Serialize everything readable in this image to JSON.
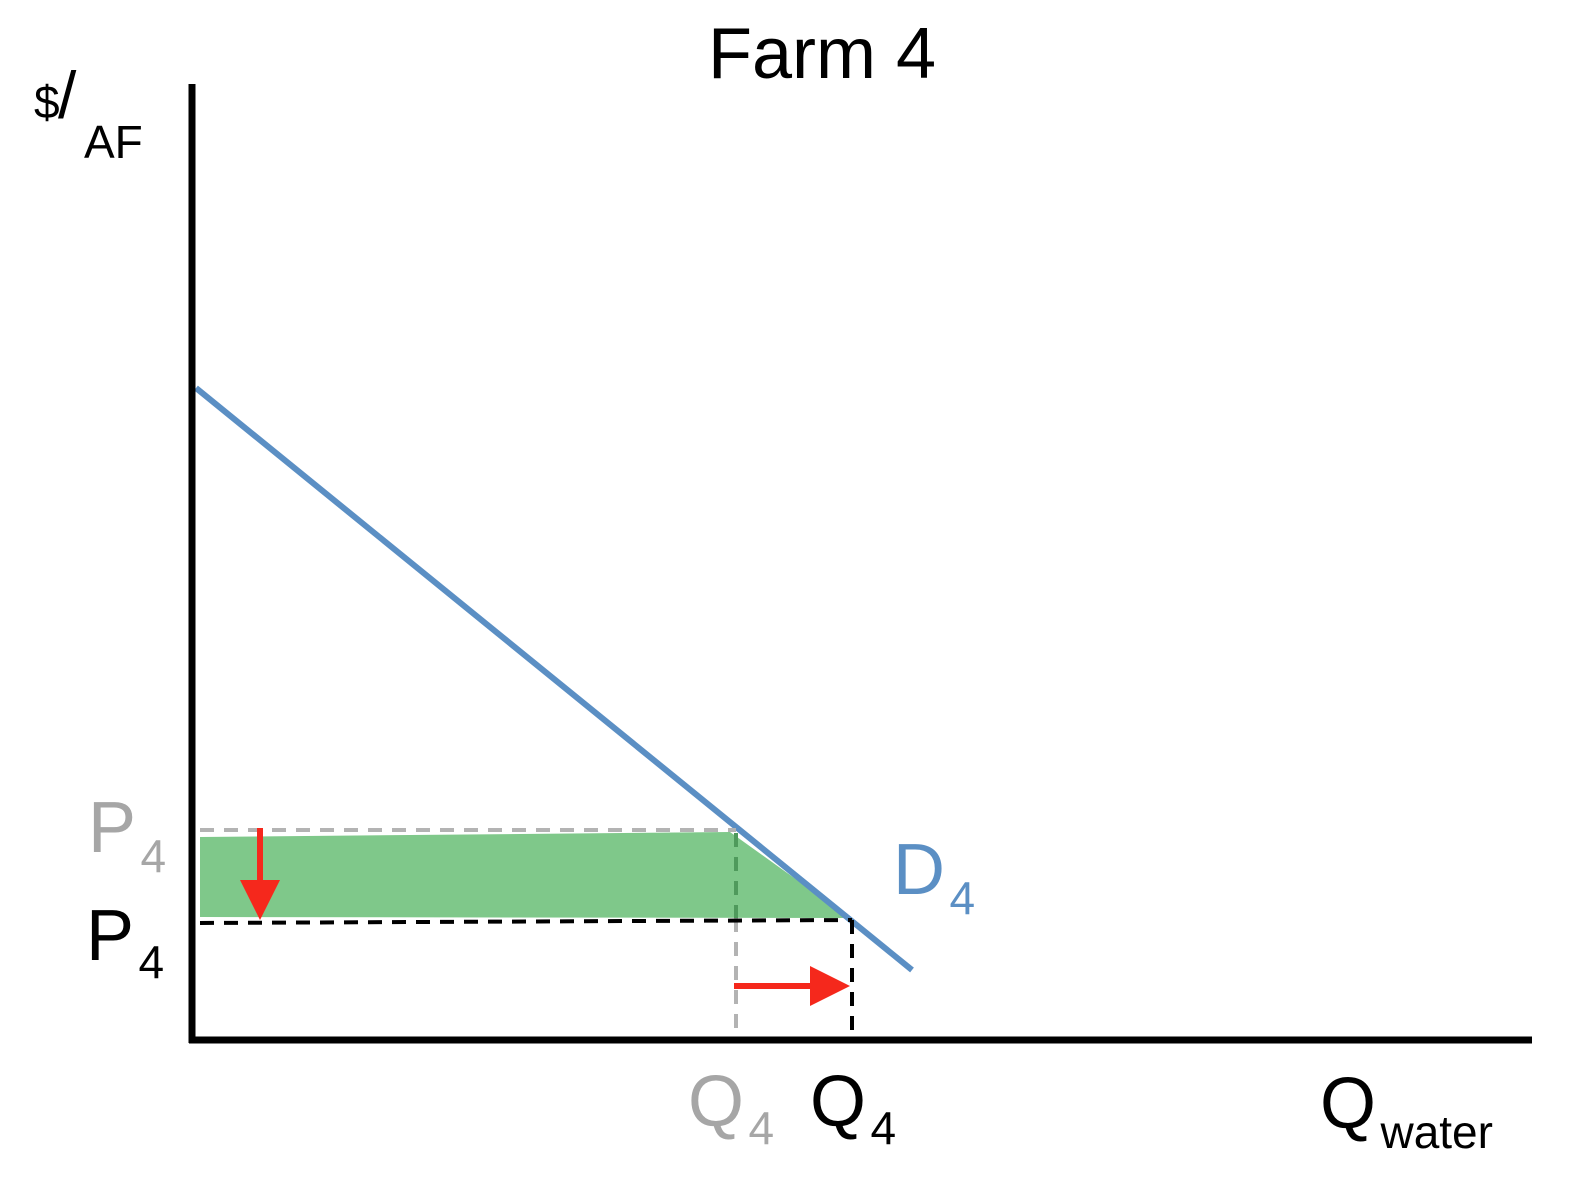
{
  "title": "Farm 4",
  "y_axis": {
    "label_main": "$",
    "label_slash": "/",
    "label_sub": "AF"
  },
  "x_axis": {
    "label_main": "Q",
    "label_sub": "water"
  },
  "demand_curve": {
    "label_main": "D",
    "label_sub": "4",
    "color": "#5b8fc4"
  },
  "old_price": {
    "label_main": "P",
    "label_sub": "4",
    "color": "#a6a6a6"
  },
  "new_price": {
    "label_main": "P",
    "label_sub": "4",
    "color": "#000000"
  },
  "old_quantity": {
    "label_main": "Q",
    "label_sub": "4",
    "color": "#a6a6a6"
  },
  "new_quantity": {
    "label_main": "Q",
    "label_sub": "4",
    "color": "#000000"
  },
  "colors": {
    "axis": "#000000",
    "surplus_area": "#7fc88a",
    "arrow": "#f5281c",
    "old_guide": "#b3b3b3",
    "new_guide": "#000000"
  }
}
